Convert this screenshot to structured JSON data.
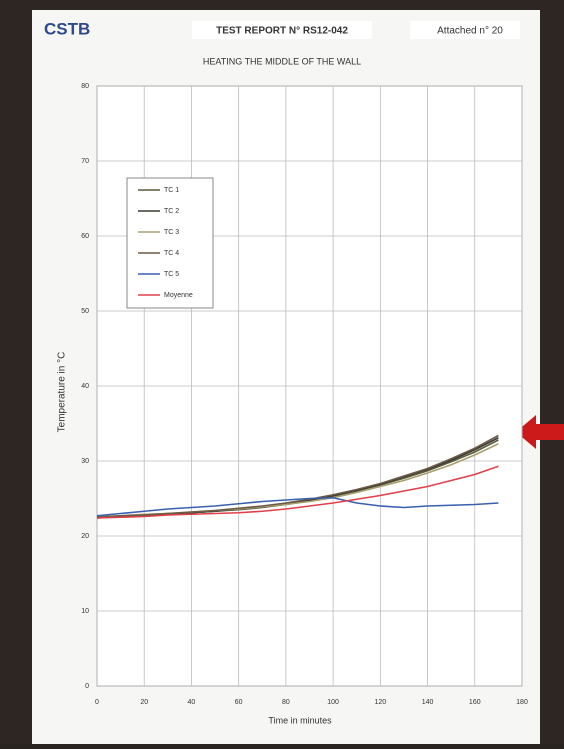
{
  "header": {
    "logo": "CSTB",
    "report": "TEST REPORT N° RS12-042",
    "attached": "Attached n° 20"
  },
  "chart_data": {
    "type": "line",
    "title": "HEATING THE MIDDLE OF THE WALL",
    "x_label": "Time in minutes",
    "y_label": "Temperature in °C",
    "x": [
      0,
      10,
      20,
      30,
      40,
      50,
      60,
      70,
      80,
      90,
      100,
      110,
      120,
      130,
      140,
      150,
      160,
      170
    ],
    "series": [
      {
        "name": "TC 1",
        "color": "#5a5a3c",
        "values": [
          22.5,
          22.6,
          22.8,
          23.0,
          23.1,
          23.3,
          23.5,
          23.8,
          24.2,
          24.7,
          25.3,
          26.0,
          26.8,
          27.7,
          28.7,
          29.9,
          31.2,
          32.8
        ]
      },
      {
        "name": "TC 2",
        "color": "#3a3a32",
        "values": [
          22.4,
          22.6,
          22.7,
          22.9,
          23.1,
          23.3,
          23.6,
          23.9,
          24.3,
          24.8,
          25.4,
          26.1,
          26.9,
          27.9,
          28.9,
          30.1,
          31.5,
          33.1
        ]
      },
      {
        "name": "TC 3",
        "color": "#a8a070",
        "values": [
          22.6,
          22.7,
          22.9,
          23.0,
          23.2,
          23.4,
          23.6,
          23.9,
          24.2,
          24.6,
          25.1,
          25.8,
          26.6,
          27.4,
          28.4,
          29.5,
          30.8,
          32.3
        ]
      },
      {
        "name": "TC 4",
        "color": "#6b5a45",
        "values": [
          22.5,
          22.7,
          22.8,
          23.0,
          23.2,
          23.4,
          23.7,
          24.0,
          24.4,
          24.9,
          25.5,
          26.2,
          27.0,
          28.0,
          29.0,
          30.3,
          31.7,
          33.4
        ]
      },
      {
        "name": "TC 5",
        "color": "#3a5fb0",
        "values": [
          22.7,
          23.0,
          23.3,
          23.6,
          23.8,
          24.0,
          24.3,
          24.6,
          24.8,
          25.0,
          25.1,
          24.4,
          24.0,
          23.8,
          24.0,
          24.1,
          24.2,
          24.4
        ]
      },
      {
        "name": "Moyenne",
        "color": "#e0404a",
        "values": [
          22.4,
          22.5,
          22.6,
          22.8,
          22.9,
          23.0,
          23.1,
          23.3,
          23.6,
          24.0,
          24.4,
          24.9,
          25.4,
          26.0,
          26.6,
          27.4,
          28.2,
          29.3
        ]
      }
    ],
    "xlim": [
      0,
      180
    ],
    "xticks": [
      0,
      20,
      40,
      60,
      80,
      100,
      120,
      140,
      160,
      180
    ],
    "ylim": [
      0,
      80
    ],
    "yticks": [
      0,
      10,
      20,
      30,
      40,
      50,
      60,
      70,
      80
    ],
    "grid": true
  }
}
